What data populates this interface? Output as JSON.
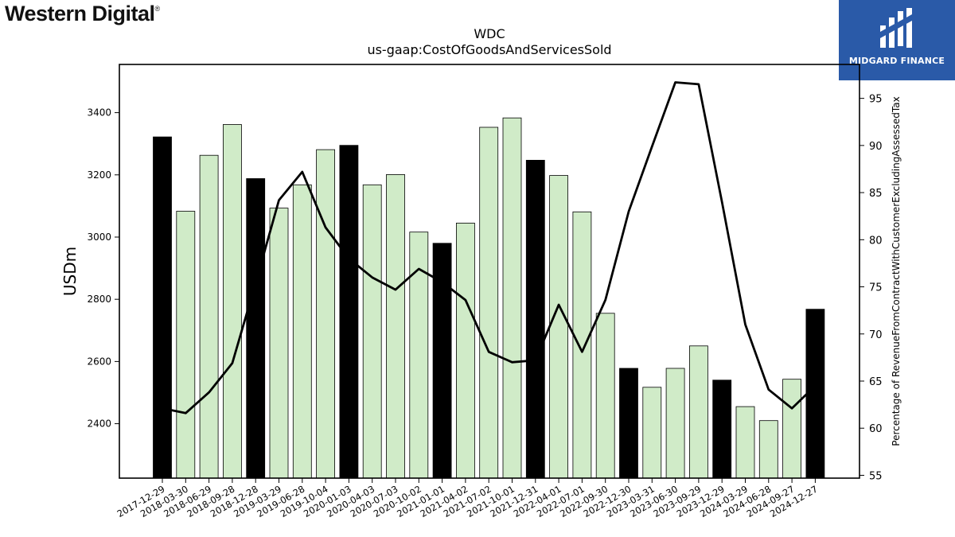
{
  "branding": {
    "company_logo_text": "Western Digital",
    "company_logo_mark": "®",
    "publisher_logo_text": "MIDGARD FINANCE",
    "publisher_color": "#2a5aa8"
  },
  "chart_data": {
    "type": "bar",
    "title": "WDC",
    "subtitle": "us-gaap:CostOfGoodsAndServicesSold",
    "ylabel": "USDm",
    "y2label": "Percentage of RevenueFromContractWithCustomerExcludingAssessedTax",
    "ylim": [
      2225,
      3555
    ],
    "y2lim": [
      54.7,
      98.6
    ],
    "yticks": [
      2400,
      2600,
      2800,
      3000,
      3200,
      3400
    ],
    "y2ticks": [
      55,
      60,
      65,
      70,
      75,
      80,
      85,
      90,
      95
    ],
    "bar_color_q4": "#000000",
    "bar_color_other": "#d0ebc8",
    "line_color": "#000000",
    "categories": [
      "2017-12-29",
      "2018-03-30",
      "2018-06-29",
      "2018-09-28",
      "2018-12-28",
      "2019-03-29",
      "2019-06-28",
      "2019-10-04",
      "2020-01-03",
      "2020-04-03",
      "2020-07-03",
      "2020-10-02",
      "2021-01-01",
      "2021-04-02",
      "2021-07-02",
      "2021-10-01",
      "2021-12-31",
      "2022-04-01",
      "2022-07-01",
      "2022-09-30",
      "2022-12-30",
      "2023-03-31",
      "2023-06-30",
      "2023-09-29",
      "2023-12-29",
      "2024-03-29",
      "2024-06-28",
      "2024-09-27",
      "2024-12-27"
    ],
    "series": [
      {
        "values": [
          3322,
          3083,
          3263,
          3362,
          3188,
          3093,
          3168,
          3281,
          3295,
          3168,
          3201,
          3016,
          2980,
          3045,
          3353,
          3383,
          3247,
          3198,
          3081,
          2755,
          2578,
          2517,
          2578,
          2650,
          2540,
          2455,
          2410,
          2543,
          2768
        ],
        "highlight": [
          true,
          false,
          false,
          false,
          true,
          false,
          false,
          false,
          true,
          false,
          false,
          false,
          true,
          false,
          false,
          false,
          true,
          false,
          false,
          false,
          true,
          false,
          false,
          false,
          true,
          false,
          false,
          false,
          true
        ]
      },
      {
        "values": [
          62.1,
          61.6,
          63.8,
          66.9,
          75.4,
          84.2,
          87.2,
          81.3,
          78.0,
          76.0,
          74.7,
          76.9,
          75.5,
          73.6,
          68.1,
          67.0,
          67.2,
          73.1,
          68.1,
          73.6,
          83.0,
          89.9,
          96.7,
          96.5,
          84.0,
          71.0,
          64.1,
          62.1,
          64.5
        ]
      }
    ]
  }
}
